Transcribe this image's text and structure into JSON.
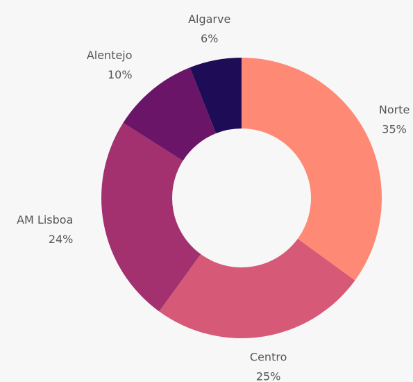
{
  "chart_data": {
    "type": "donut",
    "categories": [
      "Norte",
      "Centro",
      "AM Lisboa",
      "Alentejo",
      "Algarve"
    ],
    "values": [
      35,
      25,
      24,
      10,
      6
    ],
    "value_labels": [
      "35%",
      "25%",
      "24%",
      "10%",
      "6%"
    ],
    "colors": [
      "#fe8a76",
      "#d65a78",
      "#a3306f",
      "#6b1568",
      "#1f0c56"
    ]
  }
}
